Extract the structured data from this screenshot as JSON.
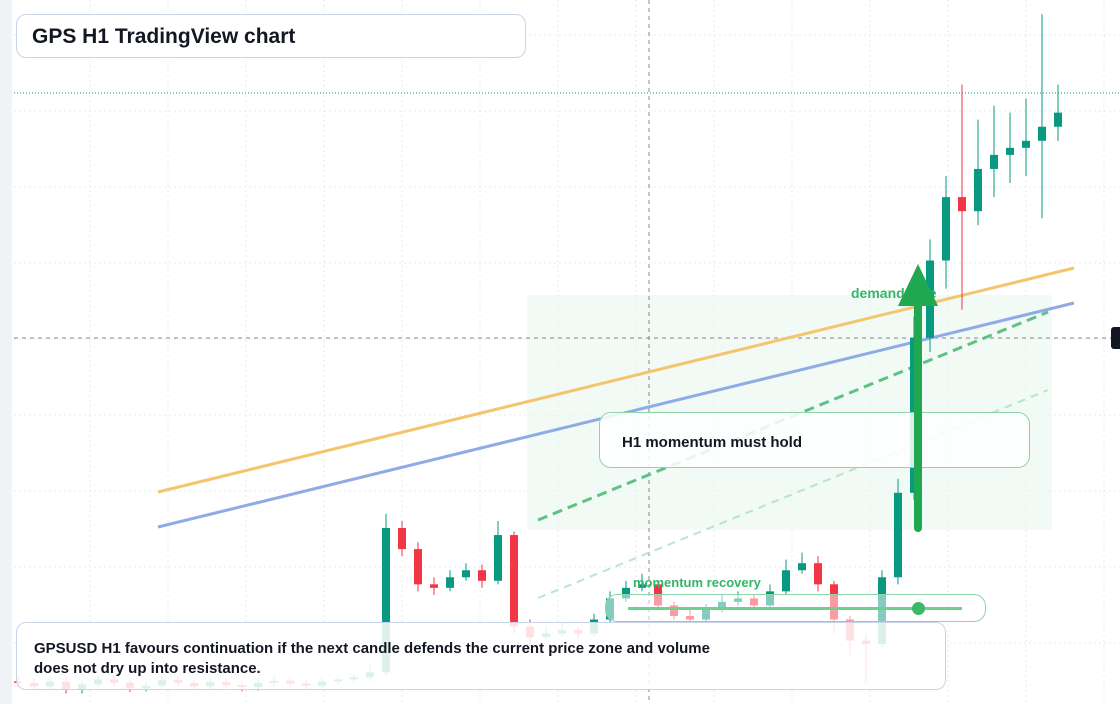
{
  "chart_data": {
    "type": "candlestick",
    "title": "GPS H1 TradingView chart",
    "ylim": [
      0,
      100
    ],
    "grid": true,
    "up_color": "#089981",
    "down_color": "#f23645",
    "annotations": [
      "demand side",
      "H1 momentum must hold",
      "momentum recovery",
      "GPSUSD H1 favours continuation if the next candle defends the current price zone and volume does not dry up into resistance."
    ],
    "open": [
      3.2,
      3,
      2.5,
      3.2,
      2,
      2.8,
      3.5,
      3,
      2.2,
      2.6,
      3.4,
      3,
      2.5,
      3.1,
      2.7,
      2.4,
      3,
      3.3,
      2.9,
      2.6,
      3.2,
      3.5,
      3.8,
      4.5,
      25,
      22,
      17,
      16.5,
      18,
      19,
      17.5,
      24,
      11,
      9.5,
      10,
      10.5,
      10,
      12,
      15,
      16.5,
      17,
      14,
      12.5,
      12,
      13.5,
      14.5,
      15,
      14,
      16,
      19,
      20,
      17,
      12,
      9,
      8.5,
      18,
      30,
      52,
      63,
      72,
      70,
      76,
      78,
      79,
      80,
      82
    ],
    "high": [
      4,
      3.6,
      3.8,
      3.9,
      3.4,
      4.1,
      4,
      3.5,
      3.2,
      4,
      3.9,
      3.5,
      3.7,
      3.6,
      3.2,
      3.6,
      3.9,
      3.8,
      3.4,
      3.8,
      4,
      4.3,
      5.5,
      27,
      26,
      23,
      18,
      19,
      20,
      19.8,
      26,
      24.5,
      12,
      11,
      11.5,
      11,
      12.8,
      16,
      17.5,
      18.5,
      17.5,
      14.5,
      13.5,
      14.2,
      15.5,
      16,
      15.5,
      17,
      20.5,
      21.5,
      21,
      17.5,
      12.5,
      10,
      19,
      32,
      55,
      66,
      75,
      88,
      83,
      85,
      84,
      86,
      98,
      88
    ],
    "low": [
      2.5,
      2,
      2,
      1.5,
      1.5,
      2.3,
      2.5,
      1.7,
      1.8,
      2.2,
      2.5,
      2,
      2,
      2.2,
      1.8,
      1.9,
      2.5,
      2.4,
      2,
      2.1,
      2.7,
      3,
      3.2,
      4,
      21,
      16,
      15.5,
      16,
      17.5,
      16.5,
      17,
      10,
      8.5,
      9,
      9.5,
      9.2,
      9.5,
      11.5,
      14.5,
      16,
      13.5,
      12,
      11.5,
      11.5,
      13,
      14,
      13.5,
      13.5,
      15.5,
      18.5,
      16,
      10,
      7,
      3,
      8,
      17,
      29,
      50,
      59,
      56,
      68,
      72,
      74,
      75,
      69,
      80
    ],
    "close": [
      3,
      2.5,
      3.2,
      2,
      2.8,
      3.5,
      3,
      2.2,
      2.6,
      3.4,
      3,
      2.5,
      3.1,
      2.7,
      2.4,
      3,
      3.3,
      2.9,
      2.6,
      3.2,
      3.5,
      3.8,
      4.5,
      25,
      22,
      17,
      16.5,
      18,
      19,
      17.5,
      24,
      11,
      9.5,
      10,
      10.5,
      10,
      12,
      15,
      16.5,
      17,
      14,
      12.5,
      12,
      13.5,
      14.5,
      15,
      14,
      16,
      19,
      20,
      17,
      12,
      9,
      8.5,
      18,
      30,
      52,
      63,
      72,
      70,
      76,
      78,
      79,
      80,
      82,
      84
    ]
  }
}
